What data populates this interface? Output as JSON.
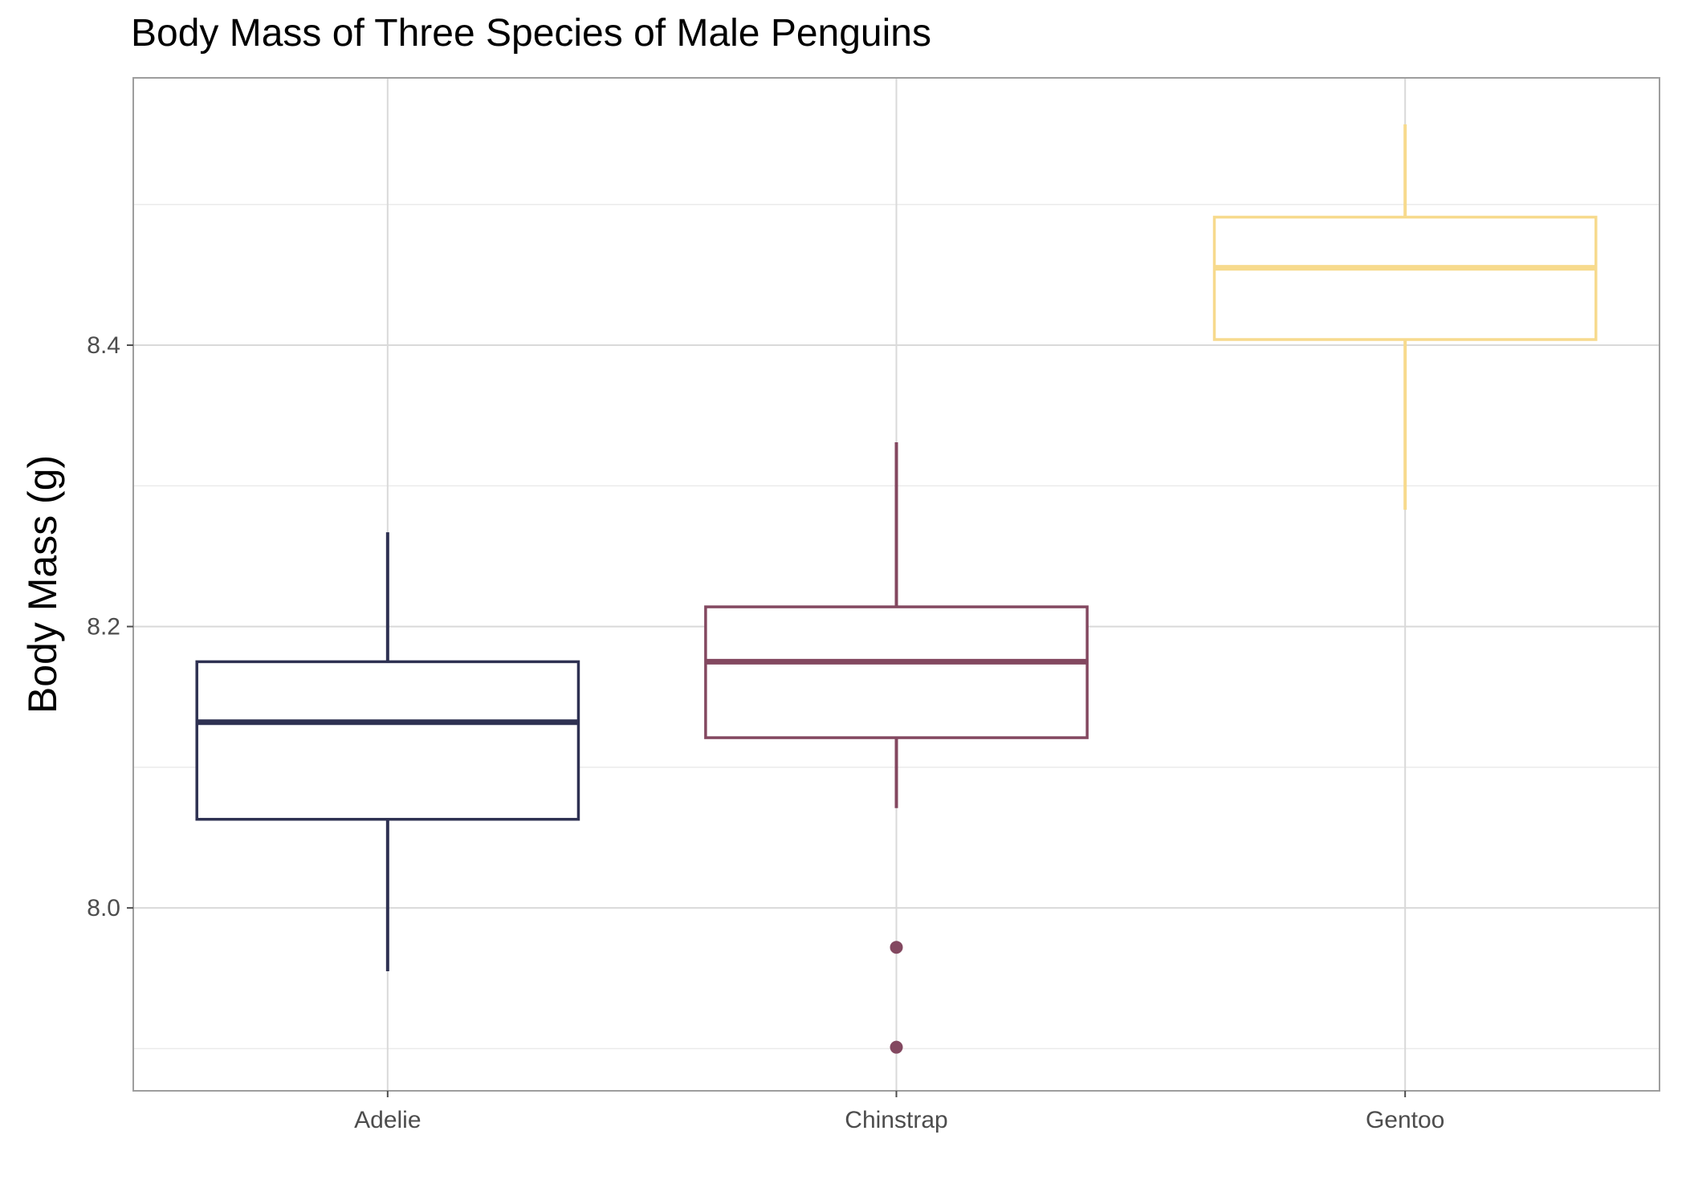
{
  "chart_data": {
    "type": "box",
    "title": "Body Mass of Three Species of Male Penguins",
    "xlabel": "",
    "ylabel": "Body Mass (g)",
    "ylim": [
      7.87,
      8.59
    ],
    "yticks": [
      8.0,
      8.2,
      8.4
    ],
    "yticks_labels": [
      "8.0",
      "8.2",
      "8.4"
    ],
    "grid": true,
    "categories": [
      "Adelie",
      "Chinstrap",
      "Gentoo"
    ],
    "series": [
      {
        "category": "Adelie",
        "color": "#2e3152",
        "min": 7.955,
        "q1": 8.063,
        "median": 8.132,
        "q3": 8.175,
        "max": 8.267,
        "outliers": []
      },
      {
        "category": "Chinstrap",
        "color": "#834860",
        "min": 8.071,
        "q1": 8.121,
        "median": 8.175,
        "q3": 8.214,
        "max": 8.331,
        "outliers": [
          7.972,
          7.901
        ]
      },
      {
        "category": "Gentoo",
        "color": "#f7da8d",
        "min": 8.283,
        "q1": 8.404,
        "median": 8.455,
        "q3": 8.491,
        "max": 8.557,
        "outliers": []
      }
    ]
  }
}
